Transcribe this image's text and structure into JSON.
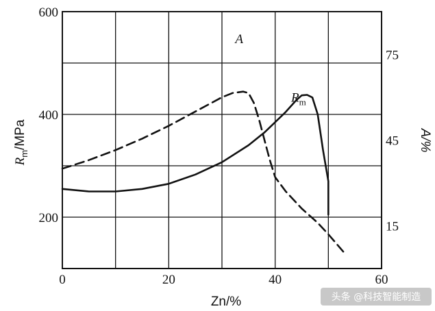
{
  "chart_data": {
    "type": "line",
    "xlabel": "Zn/%",
    "ylabel_left": {
      "base": "R",
      "sub": "m",
      "unit": "/MPa"
    },
    "ylabel_right": "A/%",
    "xlim": [
      0,
      60
    ],
    "ylim_left": [
      100,
      600
    ],
    "ylim_right": [
      0,
      90
    ],
    "x_ticks": [
      0,
      20,
      40,
      60
    ],
    "y_ticks_left": [
      200,
      400,
      600
    ],
    "y_ticks_right": [
      15,
      45,
      75
    ],
    "grid": true,
    "series": [
      {
        "name": "Rm",
        "label_base": "R",
        "label_sub": "m",
        "axis": "left",
        "style": "solid",
        "label_at": [
          43,
          425
        ],
        "points": [
          [
            0,
            255
          ],
          [
            5,
            250
          ],
          [
            10,
            250
          ],
          [
            15,
            255
          ],
          [
            20,
            265
          ],
          [
            25,
            283
          ],
          [
            30,
            307
          ],
          [
            35,
            340
          ],
          [
            38,
            365
          ],
          [
            40,
            385
          ],
          [
            42,
            405
          ],
          [
            44,
            428
          ],
          [
            45,
            437
          ],
          [
            46,
            438
          ],
          [
            47,
            433
          ],
          [
            48,
            400
          ],
          [
            49,
            330
          ],
          [
            50,
            270
          ],
          [
            50,
            205
          ]
        ]
      },
      {
        "name": "A",
        "label_base": "A",
        "label_sub": "",
        "axis": "right",
        "style": "dashed",
        "label_at": [
          32.5,
          79
        ],
        "points": [
          [
            0,
            35
          ],
          [
            5,
            38
          ],
          [
            10,
            41.5
          ],
          [
            15,
            45.5
          ],
          [
            20,
            50
          ],
          [
            25,
            55
          ],
          [
            30,
            60
          ],
          [
            32,
            61.5
          ],
          [
            34,
            62
          ],
          [
            35,
            61.5
          ],
          [
            36,
            58
          ],
          [
            37,
            52
          ],
          [
            38,
            45
          ],
          [
            39,
            38
          ],
          [
            40,
            32
          ],
          [
            42,
            27
          ],
          [
            45,
            21
          ],
          [
            48,
            16
          ],
          [
            50,
            12
          ],
          [
            53,
            5.5
          ]
        ]
      }
    ]
  },
  "watermark": "头条 @科技智能制造"
}
